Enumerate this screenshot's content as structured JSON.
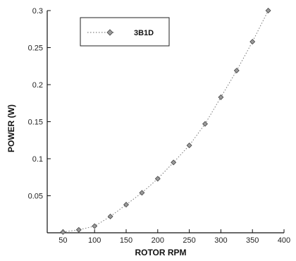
{
  "chart_data": {
    "type": "scatter",
    "xlabel": "ROTOR RPM",
    "ylabel": "POWER (W)",
    "xlim": [
      25,
      400
    ],
    "ylim": [
      0,
      0.3
    ],
    "x_ticks": [
      50,
      100,
      150,
      200,
      250,
      300,
      350,
      400
    ],
    "x_tick_labels": [
      "50",
      "100",
      "150",
      "200",
      "250",
      "300",
      "350",
      "400"
    ],
    "y_ticks": [
      0.05,
      0.1,
      0.15,
      0.2,
      0.25,
      0.3
    ],
    "y_tick_labels": [
      "0.05",
      "0.1",
      "0.15",
      "0.2",
      "0.25",
      "0.3"
    ],
    "grid": false,
    "legend_position": "top-left",
    "series": [
      {
        "name": "3B1D",
        "marker": "diamond",
        "line_style": "dotted",
        "color": "#555555",
        "x": [
          50,
          75,
          100,
          125,
          150,
          175,
          200,
          225,
          250,
          275,
          300,
          325,
          350,
          375
        ],
        "y": [
          0.001,
          0.004,
          0.009,
          0.022,
          0.038,
          0.054,
          0.073,
          0.095,
          0.118,
          0.147,
          0.183,
          0.219,
          0.258,
          0.3
        ]
      }
    ]
  }
}
